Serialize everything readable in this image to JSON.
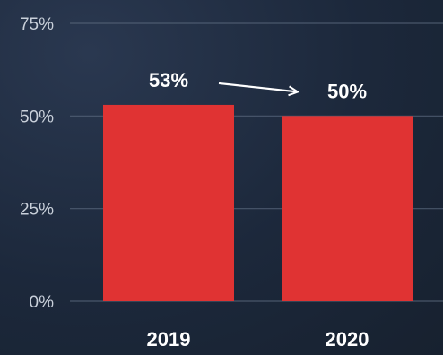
{
  "chart_data": {
    "type": "bar",
    "categories": [
      "2019",
      "2020"
    ],
    "values": [
      53,
      50
    ],
    "data_labels": [
      "53%",
      "50%"
    ],
    "ylim": [
      0,
      75
    ],
    "y_ticks": [
      0,
      25,
      50,
      75
    ],
    "y_tick_labels": [
      "0%",
      "25%",
      "50%",
      "75%"
    ],
    "title": "",
    "xlabel": "",
    "ylabel": "",
    "grid": true,
    "annotations": [
      {
        "type": "arrow",
        "from": "2019",
        "to": "2020"
      }
    ]
  },
  "colors": {
    "background": "#1c283b",
    "bar": "#e03333",
    "grid": "#5d6b80",
    "tick_text": "#c9d0da",
    "label_text": "#ffffff"
  }
}
